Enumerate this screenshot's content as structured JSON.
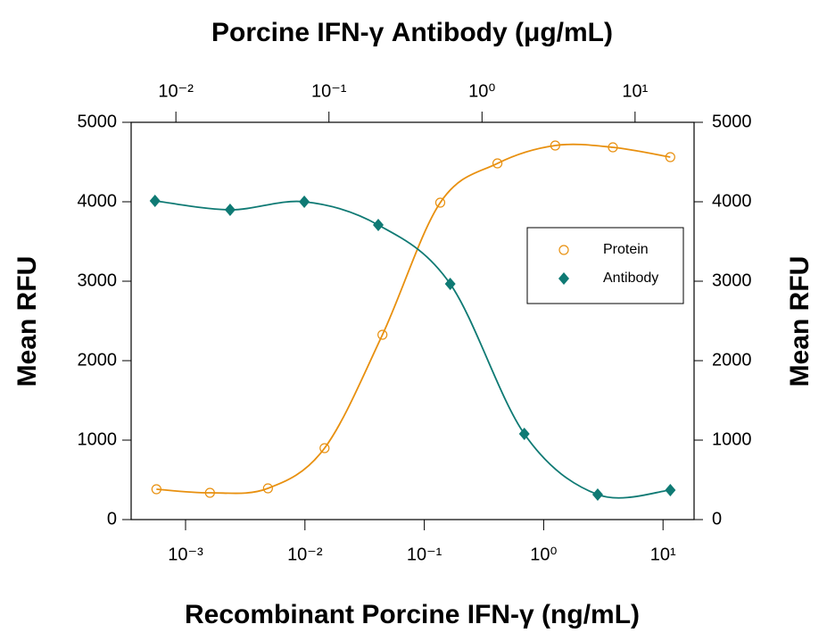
{
  "chart_data": {
    "type": "scatter",
    "title": "Porcine IFN-γ Antibody (μg/mL)",
    "x_label": "Recombinant Porcine IFN-γ (ng/mL)",
    "y_label": "Mean RFU",
    "y2_label": "Mean RFU",
    "log_x": true,
    "xlim": [
      0.00035,
      18.2
    ],
    "xticks": [
      {
        "value": 0.001,
        "label": "10⁻³"
      },
      {
        "value": 0.01,
        "label": "10⁻²"
      },
      {
        "value": 0.1,
        "label": "10⁻¹"
      },
      {
        "value": 1,
        "label": "10⁰"
      },
      {
        "value": 10,
        "label": "10¹"
      }
    ],
    "x2lim": [
      0.0051,
      24.3
    ],
    "x2ticks": [
      {
        "value": 0.01,
        "label": "10⁻²"
      },
      {
        "value": 0.1,
        "label": "10⁻¹"
      },
      {
        "value": 1,
        "label": "10⁰"
      },
      {
        "value": 10,
        "label": "10¹"
      }
    ],
    "ylim": [
      0,
      5000
    ],
    "yticks": [
      0,
      1000,
      2000,
      3000,
      4000,
      5000
    ],
    "y2lim": [
      0,
      5000
    ],
    "y2ticks": [
      0,
      1000,
      2000,
      3000,
      4000,
      5000
    ],
    "legend_position": "right",
    "series": [
      {
        "name": "Protein",
        "color": "#e8900f",
        "marker": "circle",
        "x_axis": "x",
        "x": [
          0.00057,
          0.0016,
          0.0049,
          0.0146,
          0.0446,
          0.136,
          0.41,
          1.25,
          3.8,
          11.5
        ],
        "values": [
          382,
          337,
          393,
          899,
          2326,
          3989,
          4483,
          4708,
          4685,
          4562
        ]
      },
      {
        "name": "Antibody",
        "color": "#0f7a74",
        "marker": "diamond",
        "x_axis": "x2",
        "x": [
          0.0073,
          0.0226,
          0.069,
          0.21,
          0.62,
          1.89,
          5.7,
          17
        ],
        "values": [
          4011,
          3899,
          4000,
          3708,
          2966,
          1079,
          315,
          371
        ]
      }
    ]
  }
}
